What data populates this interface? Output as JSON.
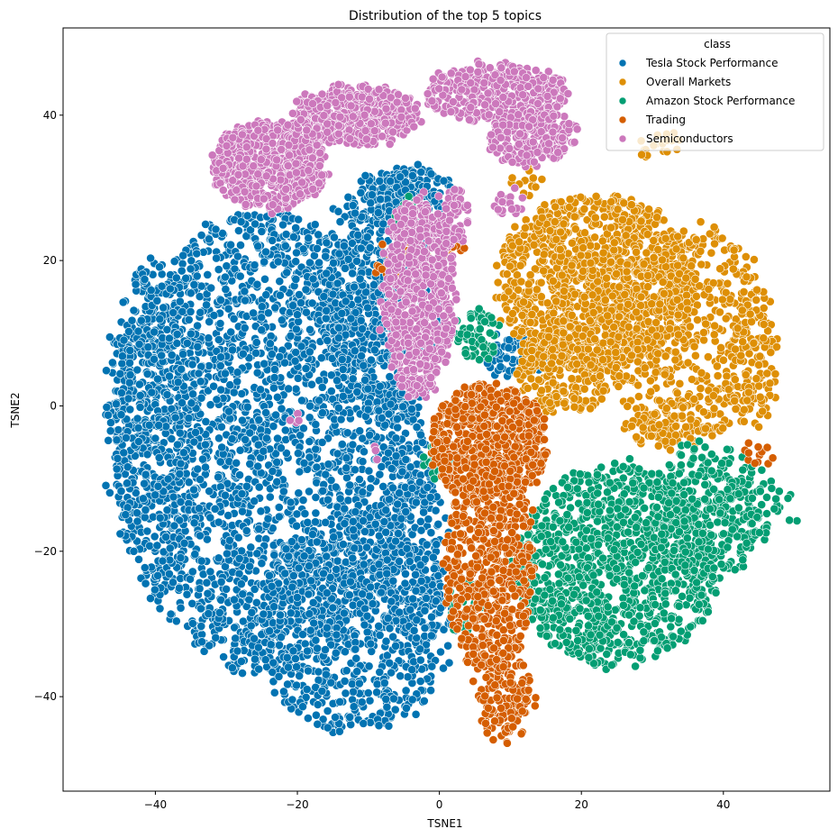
{
  "chart_data": {
    "type": "scatter",
    "title": "Distribution of the top 5 topics",
    "xlabel": "TSNE1",
    "ylabel": "TSNE2",
    "xlim": [
      -53,
      55
    ],
    "ylim": [
      -53,
      52
    ],
    "xticks": [
      -40,
      -20,
      0,
      20,
      40
    ],
    "yticks": [
      -40,
      -20,
      0,
      20,
      40
    ],
    "xtick_labels": [
      "−40",
      "−20",
      "0",
      "20",
      "40"
    ],
    "ytick_labels": [
      "−40",
      "−20",
      "0",
      "20",
      "40"
    ],
    "grid": false,
    "legend": {
      "title": "class",
      "placement": "top-right"
    },
    "series": [
      {
        "name": "Tesla Stock Performance",
        "color": "#0173b2",
        "regions": [
          {
            "cx": -24,
            "cy": -5,
            "rx": 22,
            "ry": 32,
            "n": 2600
          },
          {
            "cx": -8,
            "cy": 15,
            "rx": 9,
            "ry": 17,
            "n": 600
          },
          {
            "cx": -12,
            "cy": -30,
            "rx": 14,
            "ry": 15,
            "n": 700
          },
          {
            "cx": -40,
            "cy": -2,
            "rx": 7,
            "ry": 22,
            "n": 380
          },
          {
            "cx": -4,
            "cy": 28,
            "rx": 6,
            "ry": 5,
            "n": 160
          },
          {
            "cx": -4,
            "cy": -20,
            "rx": 5,
            "ry": 14,
            "n": 240
          },
          {
            "cx": 11,
            "cy": 7,
            "rx": 5,
            "ry": 3,
            "n": 90
          }
        ]
      },
      {
        "name": "Overall Markets",
        "color": "#de8f05",
        "regions": [
          {
            "cx": 22,
            "cy": 17,
            "rx": 14,
            "ry": 12,
            "n": 1100
          },
          {
            "cx": 35,
            "cy": 10,
            "rx": 12,
            "ry": 15,
            "n": 550
          },
          {
            "cx": 18,
            "cy": 5,
            "rx": 7,
            "ry": 6,
            "n": 250
          },
          {
            "cx": 44,
            "cy": 6,
            "rx": 4,
            "ry": 9,
            "n": 90
          },
          {
            "cx": 30,
            "cy": 36,
            "rx": 4,
            "ry": 2,
            "n": 20
          },
          {
            "cx": 12,
            "cy": 31,
            "rx": 3,
            "ry": 2,
            "n": 14
          },
          {
            "cx": 33,
            "cy": -3,
            "rx": 7,
            "ry": 3,
            "n": 70
          }
        ]
      },
      {
        "name": "Amazon Stock Performance",
        "color": "#029e73",
        "regions": [
          {
            "cx": 25,
            "cy": -22,
            "rx": 14,
            "ry": 14,
            "n": 1100
          },
          {
            "cx": 37,
            "cy": -15,
            "rx": 8,
            "ry": 10,
            "n": 300
          },
          {
            "cx": 44,
            "cy": -14,
            "rx": 6,
            "ry": 6,
            "n": 70
          },
          {
            "cx": 5,
            "cy": 10,
            "rx": 3,
            "ry": 4,
            "n": 60
          },
          {
            "cx": 0,
            "cy": -7,
            "rx": 2,
            "ry": 3,
            "n": 50
          },
          {
            "cx": -4,
            "cy": 26,
            "rx": 2,
            "ry": 3,
            "n": 30
          },
          {
            "cx": 4,
            "cy": -28,
            "rx": 2,
            "ry": 4,
            "n": 35
          }
        ]
      },
      {
        "name": "Trading",
        "color": "#d55e00",
        "regions": [
          {
            "cx": 7,
            "cy": -5,
            "rx": 8,
            "ry": 8,
            "n": 700
          },
          {
            "cx": 7,
            "cy": -22,
            "rx": 6,
            "ry": 15,
            "n": 600
          },
          {
            "cx": 9,
            "cy": -40,
            "rx": 4,
            "ry": 6,
            "n": 140
          },
          {
            "cx": -5,
            "cy": 20,
            "rx": 4,
            "ry": 3,
            "n": 50
          },
          {
            "cx": 45,
            "cy": -7,
            "rx": 2,
            "ry": 2,
            "n": 12
          },
          {
            "cx": 2,
            "cy": 22,
            "rx": 2,
            "ry": 2,
            "n": 14
          }
        ]
      },
      {
        "name": "Semiconductors",
        "color": "#cc78bc",
        "regions": [
          {
            "cx": -24,
            "cy": 33,
            "rx": 8,
            "ry": 6,
            "n": 700
          },
          {
            "cx": -12,
            "cy": 40,
            "rx": 9,
            "ry": 4,
            "n": 500
          },
          {
            "cx": 8,
            "cy": 43,
            "rx": 10,
            "ry": 4,
            "n": 350
          },
          {
            "cx": 13,
            "cy": 37,
            "rx": 6,
            "ry": 4,
            "n": 200
          },
          {
            "cx": -3,
            "cy": 15,
            "rx": 5,
            "ry": 14,
            "n": 650
          },
          {
            "cx": 2,
            "cy": 26,
            "rx": 2,
            "ry": 4,
            "n": 60
          },
          {
            "cx": 10,
            "cy": 28,
            "rx": 2,
            "ry": 2,
            "n": 20
          },
          {
            "cx": -20,
            "cy": -2,
            "rx": 1,
            "ry": 1,
            "n": 4
          },
          {
            "cx": -9,
            "cy": -6,
            "rx": 1,
            "ry": 1,
            "n": 3
          }
        ]
      }
    ]
  }
}
